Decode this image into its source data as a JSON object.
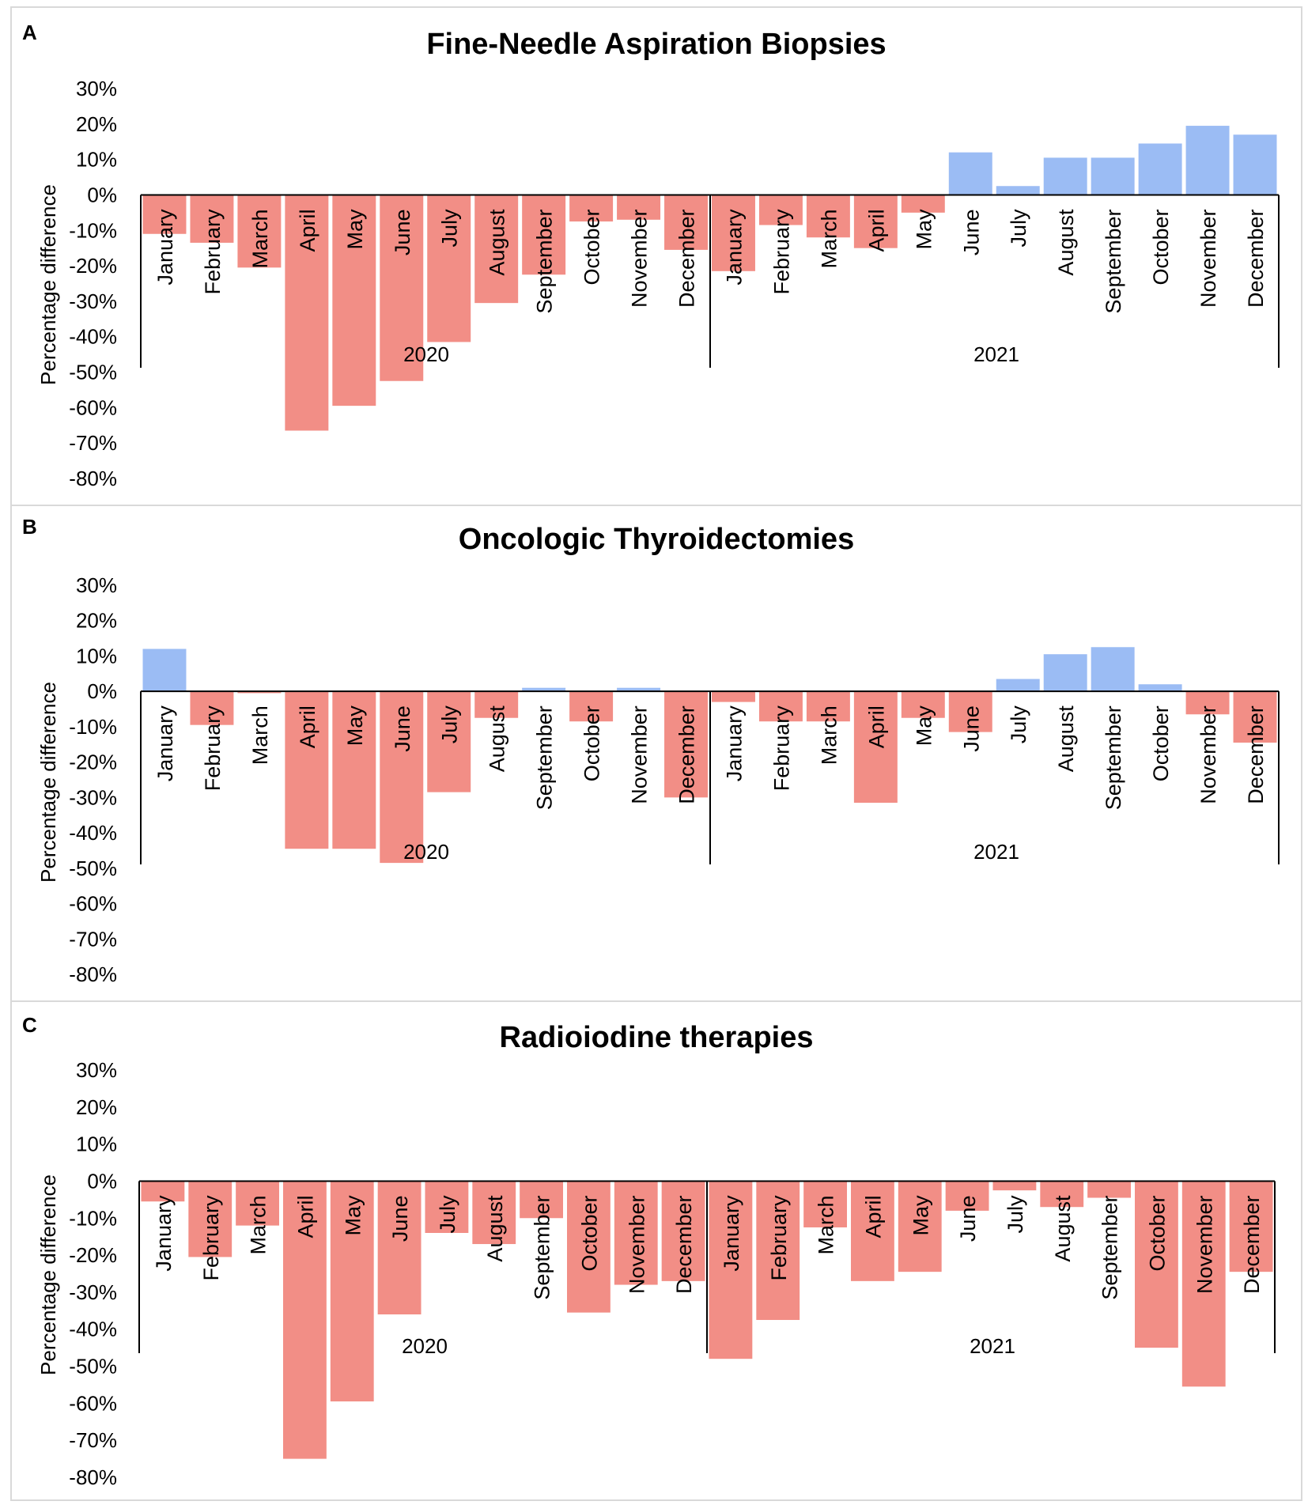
{
  "colors": {
    "negative": "#f28e86",
    "positive": "#9bbcf4",
    "axis": "#000000",
    "border": "#d9d9d9"
  },
  "chart_data": [
    {
      "type": "bar",
      "panel": "A",
      "title": "Fine-Needle Aspiration Biopsies",
      "ylabel": "Percentage difference",
      "xlabel": "",
      "ylim": [
        -80,
        30
      ],
      "yticks": [
        "30%",
        "20%",
        "10%",
        "0%",
        "-10%",
        "-20%",
        "-30%",
        "-40%",
        "-50%",
        "-60%",
        "-70%",
        "-80%"
      ],
      "groups": [
        "2020",
        "2021"
      ],
      "categories": [
        "January",
        "February",
        "March",
        "April",
        "May",
        "June",
        "July",
        "August",
        "September",
        "October",
        "November",
        "December",
        "January",
        "February",
        "March",
        "April",
        "May",
        "June",
        "July",
        "August",
        "September",
        "October",
        "November",
        "December"
      ],
      "values": [
        -11,
        -13.5,
        -20.5,
        -66.5,
        -59.5,
        -52.5,
        -41.5,
        -30.5,
        -22.5,
        -7.5,
        -7,
        -15.5,
        -21.5,
        -8.5,
        -12,
        -15,
        -5,
        12,
        2.5,
        10.5,
        10.5,
        14.5,
        19.5,
        17
      ]
    },
    {
      "type": "bar",
      "panel": "B",
      "title": "Oncologic Thyroidectomies",
      "ylabel": "Percentage difference",
      "xlabel": "",
      "ylim": [
        -80,
        30
      ],
      "yticks": [
        "30%",
        "20%",
        "10%",
        "0%",
        "-10%",
        "-20%",
        "-30%",
        "-40%",
        "-50%",
        "-60%",
        "-70%",
        "-80%"
      ],
      "groups": [
        "2020",
        "2021"
      ],
      "categories": [
        "January",
        "February",
        "March",
        "April",
        "May",
        "June",
        "July",
        "August",
        "September",
        "October",
        "November",
        "December",
        "January",
        "February",
        "March",
        "April",
        "May",
        "June",
        "July",
        "August",
        "September",
        "October",
        "November",
        "December"
      ],
      "values": [
        12,
        -9.5,
        -0.5,
        -44.5,
        -44.5,
        -48.5,
        -28.5,
        -7.5,
        1,
        -8.5,
        1,
        -30,
        -3,
        -8.5,
        -8.5,
        -31.5,
        -7.5,
        -11.5,
        3.5,
        10.5,
        12.5,
        2,
        -6.5,
        -14.5
      ]
    },
    {
      "type": "bar",
      "panel": "C",
      "title": "Radioiodine therapies",
      "ylabel": "Percentage difference",
      "xlabel": "",
      "ylim": [
        -80,
        30
      ],
      "yticks": [
        "30%",
        "20%",
        "10%",
        "0%",
        "-10%",
        "-20%",
        "-30%",
        "-40%",
        "-50%",
        "-60%",
        "-70%",
        "-80%"
      ],
      "groups": [
        "2020",
        "2021"
      ],
      "categories": [
        "January",
        "February",
        "March",
        "April",
        "May",
        "June",
        "July",
        "August",
        "September",
        "October",
        "November",
        "December",
        "January",
        "February",
        "March",
        "April",
        "May",
        "June",
        "July",
        "August",
        "September",
        "October",
        "November",
        "December"
      ],
      "values": [
        -5.5,
        -20.5,
        -12,
        -75,
        -59.5,
        -36,
        -14,
        -17,
        -10,
        -35.5,
        -28,
        -27,
        -48,
        -37.5,
        -12.5,
        -27,
        -24.5,
        -8,
        -2.5,
        -7,
        -4.5,
        -45,
        -55.5,
        -24.5
      ]
    }
  ]
}
